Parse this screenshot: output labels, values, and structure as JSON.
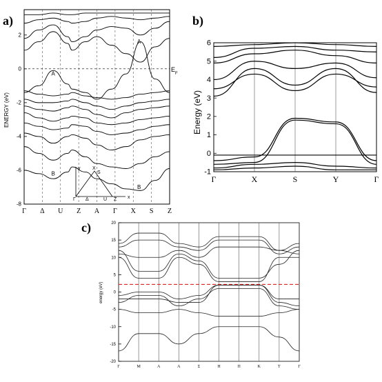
{
  "chart_data": [
    {
      "panel_label": "a)",
      "type": "line",
      "ylabel": "ENERGY (eV)",
      "ylim": [
        -8,
        3.5
      ],
      "yticks": [
        2,
        0,
        -2,
        -4,
        -6,
        -8
      ],
      "ytick_labels": [
        "2",
        "0",
        "-2",
        "-4",
        "-6",
        "-8"
      ],
      "xtick_labels": [
        "Γ",
        "Δ",
        "U",
        "Z",
        "A",
        "Γ",
        "X",
        "S",
        "Z"
      ],
      "fermi_label": "E",
      "fermi_sub": "F",
      "band_labels": [
        {
          "text": "A",
          "x": 0.2,
          "y": -0.4
        },
        {
          "text": "A",
          "x": 0.79,
          "y": 1.5
        },
        {
          "text": "B",
          "x": 0.2,
          "y": -6.3
        },
        {
          "text": "B",
          "x": 0.79,
          "y": -7.1
        }
      ],
      "inset_labels": [
        "y",
        "X",
        "S",
        "Γ",
        "Δ",
        "U",
        "Z",
        "x"
      ],
      "series": [
        {
          "x": [
            0,
            0.1,
            0.2,
            0.3,
            0.33,
            0.42,
            0.5,
            0.6,
            0.7,
            0.8,
            0.9,
            1
          ],
          "y": [
            -6.0,
            -6.2,
            -6.5,
            -6.1,
            -5.8,
            -6.1,
            -6.5,
            -6.8,
            -7.1,
            -7.2,
            -6.6,
            -5.9
          ]
        },
        {
          "x": [
            0,
            0.1,
            0.2,
            0.3,
            0.33,
            0.42,
            0.5,
            0.6,
            0.7,
            0.8,
            0.9,
            1
          ],
          "y": [
            -4.6,
            -5.0,
            -5.4,
            -5.0,
            -4.8,
            -5.2,
            -5.6,
            -5.8,
            -5.9,
            -5.6,
            -5.2,
            -4.9
          ]
        },
        {
          "x": [
            0,
            0.1,
            0.2,
            0.3,
            0.33,
            0.42,
            0.5,
            0.6,
            0.7,
            0.8,
            0.9,
            1
          ],
          "y": [
            -3.8,
            -4.0,
            -4.4,
            -4.0,
            -3.9,
            -4.1,
            -4.5,
            -4.8,
            -4.6,
            -4.2,
            -4.0,
            -3.9
          ]
        },
        {
          "x": [
            0,
            0.1,
            0.2,
            0.3,
            0.33,
            0.42,
            0.5,
            0.6,
            0.7,
            0.8,
            0.9,
            1
          ],
          "y": [
            -3.2,
            -3.4,
            -3.6,
            -3.5,
            -3.3,
            -3.4,
            -3.7,
            -3.9,
            -3.8,
            -3.6,
            -3.4,
            -3.3
          ]
        },
        {
          "x": [
            0,
            0.1,
            0.2,
            0.3,
            0.33,
            0.42,
            0.5,
            0.6,
            0.7,
            0.8,
            0.9,
            1
          ],
          "y": [
            -2.6,
            -2.9,
            -3.1,
            -2.9,
            -2.8,
            -2.9,
            -3.2,
            -3.3,
            -3.2,
            -3.0,
            -2.9,
            -2.8
          ]
        },
        {
          "x": [
            0,
            0.1,
            0.2,
            0.3,
            0.33,
            0.42,
            0.5,
            0.6,
            0.7,
            0.8,
            0.9,
            1
          ],
          "y": [
            -2.2,
            -2.4,
            -2.5,
            -2.3,
            -2.2,
            -2.4,
            -2.7,
            -2.9,
            -2.6,
            -2.4,
            -2.3,
            -2.2
          ]
        },
        {
          "x": [
            0,
            0.1,
            0.2,
            0.3,
            0.33,
            0.42,
            0.5,
            0.6,
            0.7,
            0.8,
            0.9,
            1
          ],
          "y": [
            -1.8,
            -2.0,
            -2.0,
            -1.9,
            -1.8,
            -2.0,
            -2.2,
            -2.4,
            -2.2,
            -2.0,
            -1.9,
            -1.8
          ]
        },
        {
          "x": [
            0,
            0.1,
            0.2,
            0.3,
            0.33,
            0.42,
            0.5,
            0.6,
            0.7,
            0.8,
            0.9,
            1
          ],
          "y": [
            -1.3,
            -1.5,
            -1.6,
            -1.5,
            -1.4,
            -1.6,
            -1.7,
            -1.8,
            -1.7,
            -1.5,
            -1.4,
            -1.3
          ]
        },
        {
          "x": [
            0,
            0.1,
            0.2,
            0.3,
            0.33,
            0.42,
            0.5,
            0.6,
            0.7,
            0.8,
            0.9,
            1
          ],
          "y": [
            -1.4,
            -1.0,
            -0.1,
            -0.9,
            -1.2,
            -1.4,
            -1.8,
            -1.2,
            -0.3,
            1.6,
            -0.6,
            -1.4
          ]
        },
        {
          "x": [
            0,
            0.1,
            0.2,
            0.3,
            0.33,
            0.42,
            0.5,
            0.6,
            0.7,
            0.8,
            0.9,
            1
          ],
          "y": [
            1.8,
            2.3,
            2.6,
            1.9,
            1.6,
            1.9,
            2.3,
            2.5,
            2.4,
            2.0,
            2.4,
            2.8
          ]
        },
        {
          "x": [
            0,
            0.1,
            0.2,
            0.3,
            0.33,
            0.42,
            0.5,
            0.6,
            0.7,
            0.8,
            0.9,
            1
          ],
          "y": [
            2.7,
            2.9,
            3.0,
            2.8,
            2.7,
            2.8,
            3.0,
            3.1,
            3.0,
            2.9,
            3.0,
            3.1
          ]
        },
        {
          "x": [
            0,
            0.1,
            0.2,
            0.3,
            0.33,
            0.42,
            0.5,
            0.6,
            0.7,
            0.8,
            0.9,
            1
          ],
          "y": [
            3.2,
            3.2,
            3.3,
            3.2,
            3.2,
            3.3,
            3.3,
            3.3,
            3.3,
            3.3,
            3.3,
            3.3
          ]
        },
        {
          "x": [
            0,
            0.1,
            0.2,
            0.3,
            0.33,
            0.42,
            0.5,
            0.6,
            0.7,
            0.8,
            0.9,
            1
          ],
          "y": [
            1.1,
            1.6,
            2.2,
            1.5,
            1.1,
            1.6,
            1.9,
            1.4,
            0.9,
            0.4,
            1.3,
            1.8
          ]
        }
      ]
    },
    {
      "panel_label": "b)",
      "type": "line",
      "ylabel": "Energy (eV)",
      "ylim": [
        -1,
        6
      ],
      "yticks": [
        -1,
        0,
        1,
        2,
        3,
        4,
        5,
        6
      ],
      "ytick_labels": [
        "-1",
        "0",
        "1",
        "2",
        "3",
        "4",
        "5",
        "6"
      ],
      "xtick_labels": [
        "Γ",
        "X",
        "S",
        "Y",
        "Γ"
      ],
      "series": [
        {
          "x": [
            0,
            0.25,
            0.5,
            0.75,
            1
          ],
          "y": [
            -0.4,
            -0.2,
            1.9,
            1.7,
            -0.4
          ]
        },
        {
          "x": [
            0,
            0.25,
            0.5,
            0.75,
            1
          ],
          "y": [
            -0.6,
            -0.5,
            1.8,
            1.6,
            -0.6
          ]
        },
        {
          "x": [
            0,
            0.25,
            0.5,
            0.75,
            1
          ],
          "y": [
            -0.1,
            -0.1,
            -0.1,
            -0.1,
            -0.1
          ]
        },
        {
          "x": [
            0,
            0.25,
            0.5,
            0.75,
            1
          ],
          "y": [
            -0.8,
            -0.6,
            -0.5,
            -0.7,
            -0.8
          ]
        },
        {
          "x": [
            0,
            0.25,
            0.5,
            0.75,
            1
          ],
          "y": [
            -0.9,
            -0.8,
            -0.7,
            -0.9,
            -0.9
          ]
        },
        {
          "x": [
            0,
            0.25,
            0.5,
            0.75,
            1
          ],
          "y": [
            3.1,
            4.6,
            3.7,
            4.6,
            3.3
          ]
        },
        {
          "x": [
            0,
            0.25,
            0.5,
            0.75,
            1
          ],
          "y": [
            3.5,
            4.3,
            3.4,
            4.3,
            3.6
          ]
        },
        {
          "x": [
            0,
            0.25,
            0.5,
            0.75,
            1
          ],
          "y": [
            4.0,
            5.0,
            4.6,
            4.9,
            4.1
          ]
        },
        {
          "x": [
            0,
            0.25,
            0.5,
            0.75,
            1
          ],
          "y": [
            4.9,
            5.4,
            5.6,
            5.3,
            4.9
          ]
        },
        {
          "x": [
            0,
            0.25,
            0.5,
            0.75,
            1
          ],
          "y": [
            5.2,
            5.7,
            5.8,
            5.6,
            5.5
          ]
        },
        {
          "x": [
            0,
            0.25,
            0.5,
            0.75,
            1
          ],
          "y": [
            5.8,
            5.9,
            6.0,
            5.9,
            5.8
          ]
        }
      ]
    },
    {
      "panel_label": "c)",
      "type": "line",
      "ylabel": "energy (eV)",
      "ylim": [
        -20,
        20
      ],
      "yticks": [
        20,
        15,
        10,
        5,
        0,
        -5,
        -10,
        -15,
        -20
      ],
      "ytick_labels": [
        "20",
        "15",
        "10",
        "5",
        "0",
        "-5",
        "-10",
        "-15",
        "-20"
      ],
      "xtick_labels": [
        "Γ",
        "M",
        "A",
        "A",
        "Σ",
        "H",
        "Π",
        "K",
        "T",
        "Γ"
      ],
      "fermi_level": 2.2,
      "series": [
        {
          "x": [
            0,
            1,
            2,
            3,
            4,
            5,
            6,
            7,
            8,
            9
          ],
          "y": [
            -17,
            -12,
            -12,
            -15,
            -12,
            -10,
            -10,
            -10,
            -13,
            -17
          ]
        },
        {
          "x": [
            0,
            1,
            2,
            3,
            4,
            5,
            6,
            7,
            8,
            9
          ],
          "y": [
            -5,
            -6,
            -6,
            -5,
            -6,
            -7,
            -7,
            -7,
            -6,
            -5
          ]
        },
        {
          "x": [
            0,
            1,
            2,
            3,
            4,
            5,
            6,
            7,
            8,
            9
          ],
          "y": [
            -1,
            0,
            0,
            -2,
            -1,
            2,
            2,
            2,
            -3,
            -4
          ]
        },
        {
          "x": [
            0,
            1,
            2,
            3,
            4,
            5,
            6,
            7,
            8,
            9
          ],
          "y": [
            -3,
            -1,
            -1,
            -4,
            -2,
            1,
            1,
            1,
            -4,
            -5
          ]
        },
        {
          "x": [
            0,
            1,
            2,
            3,
            4,
            5,
            6,
            7,
            8,
            9
          ],
          "y": [
            -2,
            -2,
            -2,
            -3,
            -3,
            2,
            2,
            2,
            -2,
            -2
          ]
        },
        {
          "x": [
            0,
            1,
            2,
            3,
            4,
            5,
            6,
            7,
            8,
            9
          ],
          "y": [
            10,
            4,
            4,
            10,
            8,
            3,
            3,
            3,
            10,
            10
          ]
        },
        {
          "x": [
            0,
            1,
            2,
            3,
            4,
            5,
            6,
            7,
            8,
            9
          ],
          "y": [
            11,
            10,
            10,
            12,
            10,
            13,
            13,
            13,
            12,
            11
          ]
        },
        {
          "x": [
            0,
            1,
            2,
            3,
            4,
            5,
            6,
            7,
            8,
            9
          ],
          "y": [
            13,
            15,
            15,
            13,
            12,
            15,
            15,
            15,
            11,
            13
          ]
        },
        {
          "x": [
            0,
            1,
            2,
            3,
            4,
            5,
            6,
            7,
            8,
            9
          ],
          "y": [
            14,
            17,
            17,
            14,
            13,
            16,
            16,
            16,
            12,
            14
          ]
        },
        {
          "x": [
            0,
            1,
            2,
            3,
            4,
            5,
            6,
            7,
            8,
            9
          ],
          "y": [
            12,
            6,
            6,
            11,
            9,
            4,
            4,
            4,
            8,
            12
          ]
        }
      ]
    }
  ]
}
